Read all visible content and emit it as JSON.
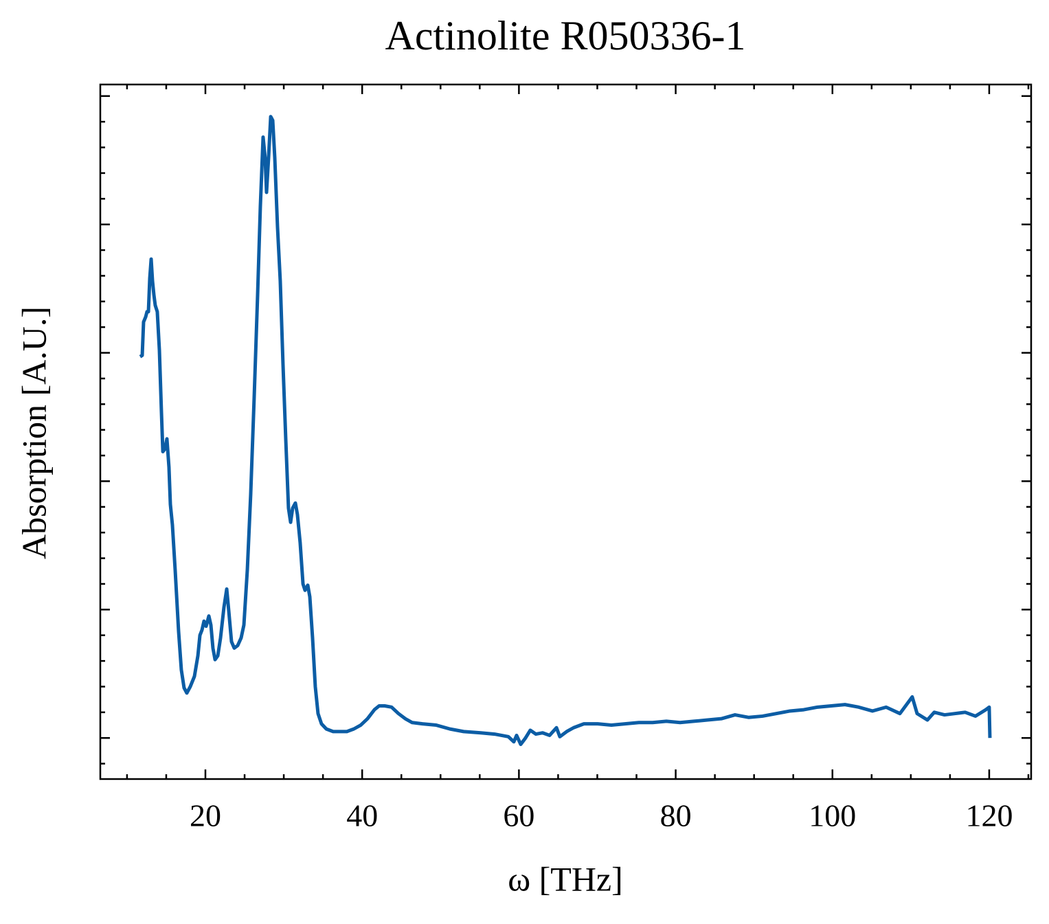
{
  "chart_data": {
    "type": "line",
    "title": "Actinolite R050336-1",
    "x_label": "ω [THz]",
    "y_label": "Absorption [A.U.]",
    "xlim": [
      6.59,
      125.35
    ],
    "ylim": [
      -0.32,
      5.09
    ],
    "xticks": [
      20,
      40,
      60,
      80,
      100,
      120
    ],
    "xticks_minor": [
      10,
      15,
      25,
      30,
      35,
      45,
      50,
      55,
      65,
      70,
      75,
      85,
      90,
      95,
      105,
      110,
      115,
      125
    ],
    "yticks": [
      0,
      1,
      2,
      3,
      4,
      5
    ],
    "yticks_minor": [
      -0.2,
      0.2,
      0.4,
      0.6,
      0.8,
      1.2,
      1.4,
      1.6,
      1.8,
      2.2,
      2.4,
      2.6,
      2.8,
      3.2,
      3.4,
      3.6,
      3.8,
      4.2,
      4.4,
      4.6,
      4.8
    ],
    "series": [
      {
        "color": "#0c5da5",
        "x": [
          11.67,
          11.94,
          12.11,
          12.38,
          12.55,
          12.73,
          12.9,
          13.08,
          13.25,
          13.43,
          13.6,
          13.86,
          14.13,
          14.39,
          14.57,
          14.83,
          15.09,
          15.35,
          15.53,
          15.79,
          16.14,
          16.58,
          16.93,
          17.28,
          17.63,
          18.07,
          18.6,
          19.04,
          19.3,
          19.56,
          19.82,
          20.09,
          20.44,
          20.7,
          20.96,
          21.23,
          21.58,
          21.93,
          22.37,
          22.72,
          22.98,
          23.33,
          23.68,
          24.12,
          24.56,
          24.91,
          25.35,
          25.78,
          26.22,
          26.66,
          27.01,
          27.36,
          27.62,
          27.8,
          28.06,
          28.33,
          28.59,
          28.85,
          29.2,
          29.55,
          29.9,
          30.25,
          30.6,
          30.87,
          31.13,
          31.48,
          31.74,
          32.09,
          32.45,
          32.71,
          33.06,
          33.32,
          33.67,
          34.02,
          34.37,
          34.81,
          35.43,
          36.3,
          37.18,
          38.05,
          38.93,
          39.81,
          40.68,
          41.56,
          42.17,
          42.87,
          43.75,
          44.63,
          45.5,
          46.38,
          47.69,
          49.45,
          51.2,
          52.95,
          55.14,
          56.9,
          58.65,
          59.35,
          59.7,
          60.23,
          60.84,
          61.45,
          62.16,
          63.03,
          63.91,
          64.79,
          65.22,
          66.1,
          66.98,
          68.29,
          70.04,
          71.8,
          73.55,
          75.3,
          77.06,
          78.81,
          80.56,
          82.31,
          84.07,
          85.82,
          87.57,
          89.33,
          91.08,
          92.83,
          94.58,
          96.34,
          98.09,
          99.84,
          101.6,
          103.35,
          105.1,
          106.85,
          108.61,
          110.18,
          110.8,
          112.11,
          112.99,
          114.3,
          115.62,
          116.93,
          118.25,
          119.56,
          120.0,
          120.09
        ],
        "values": [
          2.97,
          2.98,
          3.24,
          3.28,
          3.32,
          3.32,
          3.58,
          3.73,
          3.56,
          3.45,
          3.37,
          3.32,
          3.02,
          2.54,
          2.23,
          2.25,
          2.33,
          2.11,
          1.82,
          1.66,
          1.31,
          0.83,
          0.53,
          0.39,
          0.35,
          0.4,
          0.48,
          0.64,
          0.8,
          0.84,
          0.91,
          0.87,
          0.95,
          0.88,
          0.7,
          0.61,
          0.64,
          0.78,
          1.02,
          1.16,
          0.99,
          0.75,
          0.7,
          0.72,
          0.78,
          0.88,
          1.31,
          1.9,
          2.65,
          3.45,
          4.14,
          4.68,
          4.52,
          4.25,
          4.52,
          4.84,
          4.81,
          4.52,
          3.98,
          3.56,
          2.91,
          2.33,
          1.79,
          1.68,
          1.79,
          1.83,
          1.74,
          1.52,
          1.2,
          1.15,
          1.19,
          1.1,
          0.78,
          0.4,
          0.19,
          0.11,
          0.07,
          0.05,
          0.05,
          0.05,
          0.07,
          0.1,
          0.15,
          0.22,
          0.25,
          0.25,
          0.24,
          0.19,
          0.15,
          0.12,
          0.11,
          0.1,
          0.07,
          0.05,
          0.04,
          0.03,
          0.01,
          -0.03,
          0.02,
          -0.05,
          0.0,
          0.06,
          0.03,
          0.04,
          0.02,
          0.08,
          0.01,
          0.05,
          0.08,
          0.11,
          0.11,
          0.1,
          0.11,
          0.12,
          0.12,
          0.13,
          0.12,
          0.13,
          0.14,
          0.15,
          0.18,
          0.16,
          0.17,
          0.19,
          0.21,
          0.22,
          0.24,
          0.25,
          0.26,
          0.24,
          0.21,
          0.24,
          0.19,
          0.32,
          0.19,
          0.14,
          0.2,
          0.18,
          0.19,
          0.2,
          0.17,
          0.22,
          0.24,
          0.0
        ]
      }
    ]
  }
}
